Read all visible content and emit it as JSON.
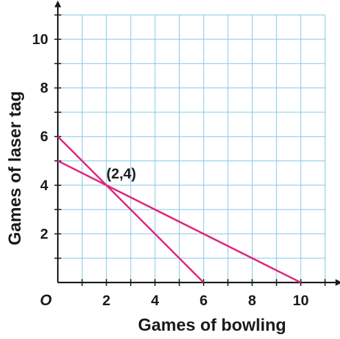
{
  "chart_data": {
    "type": "line",
    "xlabel": "Games of bowling",
    "ylabel": "Games of laser tag",
    "origin_label": "O",
    "xlim": [
      0,
      11
    ],
    "ylim": [
      0,
      11
    ],
    "x_ticks": [
      2,
      4,
      6,
      8,
      10
    ],
    "y_ticks": [
      2,
      4,
      6,
      8,
      10
    ],
    "grid": true,
    "grid_step": 1,
    "colors": {
      "grid": "#7fc6e6",
      "axis": "#1a1a1a",
      "series": "#e0257a"
    },
    "series": [
      {
        "x": [
          0,
          6
        ],
        "y": [
          6,
          0
        ]
      },
      {
        "x": [
          0,
          10
        ],
        "y": [
          5,
          0
        ]
      }
    ],
    "annotations": [
      {
        "text": "(2,4)",
        "x": 2,
        "y": 4
      }
    ]
  }
}
